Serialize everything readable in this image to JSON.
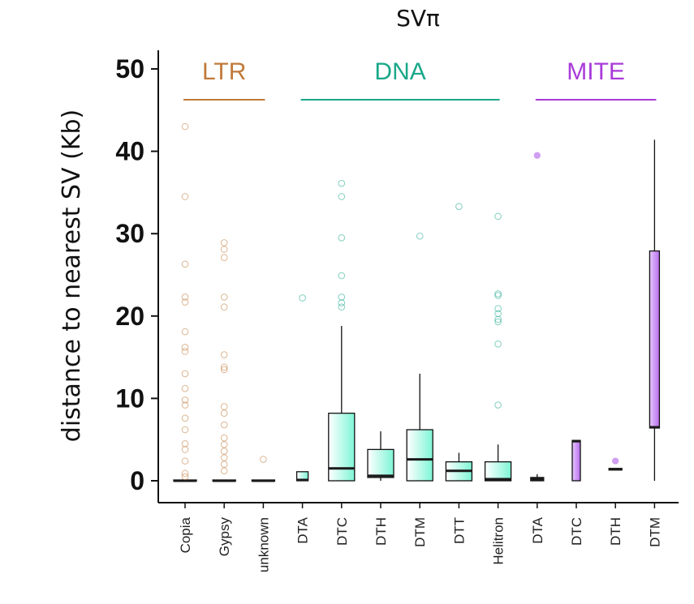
{
  "chart_data": {
    "type": "box",
    "title": "SVπ",
    "xlabel": "",
    "ylabel": "distance to nearest SV (Kb)",
    "ylim": [
      0,
      50
    ],
    "yticks": [
      0,
      10,
      20,
      30,
      40,
      50
    ],
    "grid": false,
    "groups": [
      {
        "name": "LTR",
        "color": "#c07a3a"
      },
      {
        "name": "DNA",
        "color": "#1aa88a"
      },
      {
        "name": "MITE",
        "color": "#a93bd9"
      }
    ],
    "categories": [
      "Copia",
      "Gypsy",
      "unknown",
      "DTA",
      "DTC",
      "DTH",
      "DTM",
      "DTT",
      "Helitron",
      "DTA",
      "DTC",
      "DTH",
      "DTM"
    ],
    "series": [
      {
        "group": "LTR",
        "label": "Copia",
        "q1": 0,
        "median": 0,
        "q3": 0.1,
        "whisker_low": 0,
        "whisker_high": 0.1,
        "outliers": [
          43,
          34.5,
          26.3,
          22.3,
          21.7,
          18.1,
          16.2,
          15.7,
          13,
          11.2,
          9.8,
          9.2,
          7.6,
          6.2,
          4.5,
          3.8,
          2.4,
          0.9,
          0.5
        ]
      },
      {
        "group": "LTR",
        "label": "Gypsy",
        "q1": 0,
        "median": 0,
        "q3": 0.1,
        "whisker_low": 0,
        "whisker_high": 0.1,
        "outliers": [
          28.9,
          28.1,
          27.1,
          22.3,
          21.1,
          15.3,
          13.8,
          13.5,
          9,
          8.2,
          6.8,
          5.2,
          4.4,
          3.6,
          2.8,
          2,
          1.2
        ]
      },
      {
        "group": "LTR",
        "label": "unknown",
        "q1": 0,
        "median": 0,
        "q3": 0.1,
        "whisker_low": 0,
        "whisker_high": 0.1,
        "outliers": [
          2.6
        ]
      },
      {
        "group": "DNA",
        "label": "DTA",
        "q1": 0,
        "median": 0.1,
        "q3": 1.1,
        "whisker_low": 0,
        "whisker_high": 1.1,
        "outliers": [
          22.2
        ]
      },
      {
        "group": "DNA",
        "label": "DTC",
        "q1": 0,
        "median": 1.5,
        "q3": 8.2,
        "whisker_low": 0,
        "whisker_high": 18.8,
        "outliers": [
          36.1,
          34.5,
          29.5,
          24.9,
          22.3,
          21.6,
          21.1
        ]
      },
      {
        "group": "DNA",
        "label": "DTH",
        "q1": 0.4,
        "median": 0.6,
        "q3": 3.8,
        "whisker_low": 0,
        "whisker_high": 6,
        "outliers": []
      },
      {
        "group": "DNA",
        "label": "DTM",
        "q1": 0,
        "median": 2.6,
        "q3": 6.2,
        "whisker_low": 0,
        "whisker_high": 13,
        "outliers": [
          29.7
        ]
      },
      {
        "group": "DNA",
        "label": "DTT",
        "q1": 0,
        "median": 1.2,
        "q3": 2.3,
        "whisker_low": 0,
        "whisker_high": 3.4,
        "outliers": [
          33.3
        ]
      },
      {
        "group": "DNA",
        "label": "Helitron",
        "q1": 0,
        "median": 0.2,
        "q3": 2.3,
        "whisker_low": 0,
        "whisker_high": 4.4,
        "outliers": [
          32.1,
          22.7,
          22.5,
          20.9,
          20.3,
          19.6,
          19.3,
          16.6,
          9.2
        ]
      },
      {
        "group": "MITE",
        "label": "DTA",
        "q1": 0,
        "median": 0.2,
        "q3": 0.4,
        "whisker_low": 0,
        "whisker_high": 0.8,
        "outliers": [
          39.5
        ]
      },
      {
        "group": "MITE",
        "label": "DTC",
        "q1": 0,
        "median": 4.8,
        "q3": 4.9,
        "whisker_low": 0,
        "whisker_high": 4.9,
        "outliers": []
      },
      {
        "group": "MITE",
        "label": "DTH",
        "q1": 1.3,
        "median": 1.4,
        "q3": 1.5,
        "whisker_low": 1.3,
        "whisker_high": 1.5,
        "outliers": [
          2.4
        ]
      },
      {
        "group": "MITE",
        "label": "DTM",
        "q1": 6.4,
        "median": 6.5,
        "q3": 27.9,
        "whisker_low": 0,
        "whisker_high": 41.4,
        "outliers": []
      }
    ]
  },
  "colors": {
    "ltr": "#c07a3a",
    "dna": "#1aa88a",
    "dna_fill": "#7ef5d6",
    "mite": "#a93bd9",
    "mite_fill": "#c88ef0"
  }
}
